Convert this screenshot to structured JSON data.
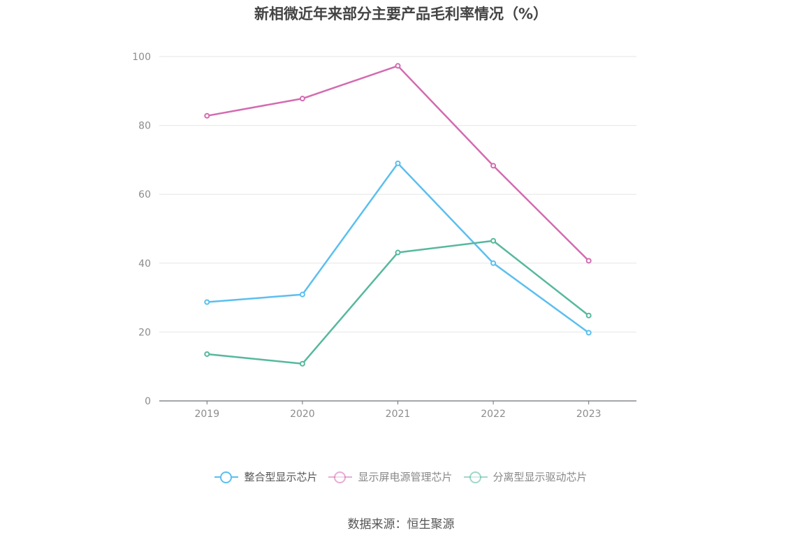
{
  "chart_data": {
    "type": "line",
    "title": "新相微近年来部分主要产品毛利率情况（%）",
    "categories": [
      "2019",
      "2020",
      "2021",
      "2022",
      "2023"
    ],
    "ylim": [
      0,
      100
    ],
    "yticks": [
      0,
      20,
      40,
      60,
      80,
      100
    ],
    "grid": true,
    "legend_position": "bottom",
    "series": [
      {
        "name": "整合型显示芯片",
        "color": "#5bbfef",
        "values": [
          28.7,
          30.9,
          69.0,
          40.0,
          19.8
        ]
      },
      {
        "name": "显示屏电源管理芯片",
        "color": "#d36bb0",
        "values": [
          82.8,
          87.8,
          97.3,
          68.3,
          40.7
        ]
      },
      {
        "name": "分离型显示驱动芯片",
        "color": "#57b89e",
        "values": [
          13.6,
          10.8,
          43.1,
          46.5,
          24.8
        ]
      }
    ]
  },
  "source": "数据来源：恒生聚源"
}
